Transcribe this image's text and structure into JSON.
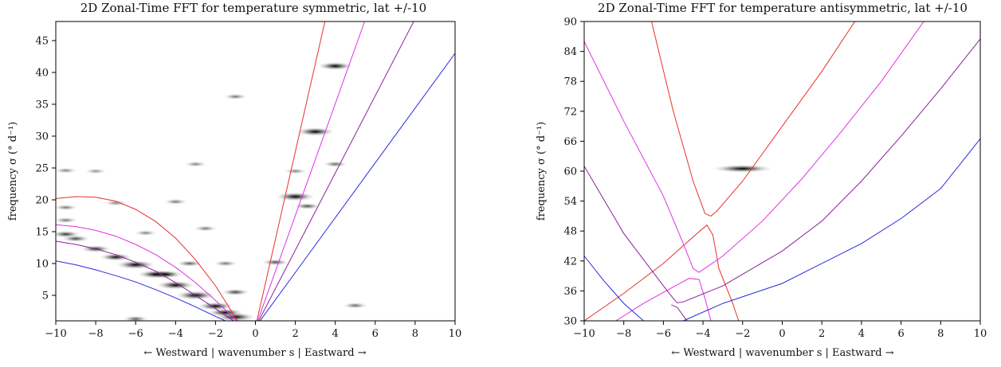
{
  "chart_data": [
    {
      "type": "heatmap",
      "title": "2D Zonal-Time FFT for temperature symmetric, lat +/-10",
      "xlabel": "← Westward | wavenumber s | Eastward →",
      "ylabel": "frequency σ (° d⁻¹)",
      "xlim": [
        -10,
        10
      ],
      "ylim": [
        1,
        48
      ],
      "xticks": [
        -10,
        -8,
        -6,
        -4,
        -2,
        0,
        2,
        4,
        6,
        8,
        10
      ],
      "xtick_labels": [
        "−10",
        "−8",
        "−6",
        "−4",
        "−2",
        "0",
        "2",
        "4",
        "6",
        "8",
        "10"
      ],
      "yticks": [
        5,
        10,
        15,
        20,
        25,
        30,
        35,
        40,
        45
      ],
      "grid": false,
      "colormap": "grayscale (white = low power, black = high power)",
      "spectral_peaks": [
        {
          "s": 4,
          "sigma": 41,
          "intensity": 0.75
        },
        {
          "s": 3,
          "sigma": 30.7,
          "intensity": 0.9
        },
        {
          "s": 2,
          "sigma": 20.5,
          "intensity": 0.95
        },
        {
          "s": 1,
          "sigma": 10.2,
          "intensity": 0.35
        },
        {
          "s": 4,
          "sigma": 25.6,
          "intensity": 0.25
        },
        {
          "s": 2,
          "sigma": 24.5,
          "intensity": 0.15
        },
        {
          "s": 2.6,
          "sigma": 19,
          "intensity": 0.35
        },
        {
          "s": 5,
          "sigma": 3.4,
          "intensity": 0.25
        },
        {
          "s": -1,
          "sigma": 36.2,
          "intensity": 0.2
        },
        {
          "s": -1,
          "sigma": 1.6,
          "intensity": 0.95
        },
        {
          "s": -1.5,
          "sigma": 2.3,
          "intensity": 0.75
        },
        {
          "s": -2,
          "sigma": 3.3,
          "intensity": 0.8
        },
        {
          "s": -3,
          "sigma": 5.0,
          "intensity": 1.0
        },
        {
          "s": -3.3,
          "sigma": 10.0,
          "intensity": 0.3
        },
        {
          "s": -4,
          "sigma": 6.6,
          "intensity": 0.9
        },
        {
          "s": -4.5,
          "sigma": 8.3,
          "intensity": 0.7
        },
        {
          "s": -5,
          "sigma": 8.3,
          "intensity": 0.8
        },
        {
          "s": -6,
          "sigma": 9.8,
          "intensity": 0.95
        },
        {
          "s": -7,
          "sigma": 11.0,
          "intensity": 0.6
        },
        {
          "s": -8,
          "sigma": 12.3,
          "intensity": 0.5
        },
        {
          "s": -9,
          "sigma": 13.9,
          "intensity": 0.4
        },
        {
          "s": -9.5,
          "sigma": 14.6,
          "intensity": 0.45
        },
        {
          "s": -9.5,
          "sigma": 16.8,
          "intensity": 0.2
        },
        {
          "s": -9.5,
          "sigma": 18.8,
          "intensity": 0.2
        },
        {
          "s": -9.5,
          "sigma": 24.6,
          "intensity": 0.15
        },
        {
          "s": -7,
          "sigma": 19.5,
          "intensity": 0.15
        },
        {
          "s": -4,
          "sigma": 19.7,
          "intensity": 0.2
        },
        {
          "s": -2.5,
          "sigma": 15.5,
          "intensity": 0.2
        },
        {
          "s": -5.5,
          "sigma": 14.8,
          "intensity": 0.15
        },
        {
          "s": -1.5,
          "sigma": 10.0,
          "intensity": 0.2
        },
        {
          "s": -1,
          "sigma": 5.5,
          "intensity": 0.4
        },
        {
          "s": -6,
          "sigma": 1.3,
          "intensity": 0.3
        },
        {
          "s": -3,
          "sigma": 25.6,
          "intensity": 0.15
        },
        {
          "s": -8,
          "sigma": 24.5,
          "intensity": 0.1
        }
      ],
      "series": [
        {
          "kind": "eastward",
          "color": "#e8302a",
          "points": [
            [
              0,
              0
            ],
            [
              3.48,
              48
            ]
          ]
        },
        {
          "kind": "eastward",
          "color": "#e030e8",
          "points": [
            [
              0,
              0
            ],
            [
              5.47,
              48
            ]
          ]
        },
        {
          "kind": "eastward",
          "color": "#8c1f9c",
          "points": [
            [
              0,
              0
            ],
            [
              7.93,
              48
            ]
          ]
        },
        {
          "kind": "eastward",
          "color": "#2a2ae0",
          "points": [
            [
              0,
              0
            ],
            [
              10,
              43
            ]
          ]
        },
        {
          "kind": "westward",
          "color": "#e8302a",
          "points": [
            [
              -10,
              20.2
            ],
            [
              -9,
              20.5
            ],
            [
              -8,
              20.4
            ],
            [
              -7,
              19.8
            ],
            [
              -6,
              18.5
            ],
            [
              -5,
              16.6
            ],
            [
              -4,
              14.0
            ],
            [
              -3,
              10.6
            ],
            [
              -2,
              6.5
            ],
            [
              -1,
              1.5
            ],
            [
              -0.75,
              0.2
            ]
          ]
        },
        {
          "kind": "westward",
          "color": "#e030e8",
          "points": [
            [
              -10,
              16.1
            ],
            [
              -9,
              15.8
            ],
            [
              -8,
              15.2
            ],
            [
              -7,
              14.3
            ],
            [
              -6,
              13.0
            ],
            [
              -5,
              11.4
            ],
            [
              -4,
              9.4
            ],
            [
              -3,
              7.0
            ],
            [
              -2,
              4.2
            ],
            [
              -1,
              1.2
            ],
            [
              -0.7,
              0.2
            ]
          ]
        },
        {
          "kind": "westward",
          "color": "#8c1f9c",
          "points": [
            [
              -10,
              13.5
            ],
            [
              -9,
              13.0
            ],
            [
              -8,
              12.3
            ],
            [
              -7,
              11.4
            ],
            [
              -6,
              10.2
            ],
            [
              -5,
              8.8
            ],
            [
              -4,
              7.0
            ],
            [
              -3,
              5.0
            ],
            [
              -2,
              2.9
            ],
            [
              -1,
              0.8
            ],
            [
              -0.7,
              0.2
            ]
          ]
        },
        {
          "kind": "westward",
          "color": "#2a2ae0",
          "points": [
            [
              -10,
              10.4
            ],
            [
              -9,
              9.8
            ],
            [
              -8,
              9.0
            ],
            [
              -7,
              8.1
            ],
            [
              -6,
              7.1
            ],
            [
              -5,
              5.9
            ],
            [
              -4,
              4.6
            ],
            [
              -3,
              3.2
            ],
            [
              -2,
              1.7
            ],
            [
              -1,
              0.3
            ],
            [
              -0.8,
              0.1
            ]
          ]
        }
      ]
    },
    {
      "type": "heatmap",
      "title": "2D Zonal-Time FFT for temperature antisymmetric, lat +/-10",
      "xlabel": "← Westward | wavenumber s | Eastward →",
      "ylabel": "frequency σ (° d⁻¹)",
      "xlim": [
        -10,
        10
      ],
      "ylim": [
        30,
        90
      ],
      "xticks": [
        -10,
        -8,
        -6,
        -4,
        -2,
        0,
        2,
        4,
        6,
        8,
        10
      ],
      "xtick_labels": [
        "−10",
        "−8",
        "−6",
        "−4",
        "−2",
        "0",
        "2",
        "4",
        "6",
        "8",
        "10"
      ],
      "yticks": [
        30,
        36,
        42,
        48,
        54,
        60,
        66,
        72,
        78,
        84,
        90
      ],
      "grid": false,
      "colormap": "grayscale (white = low power, black = high power)",
      "spectral_peaks": [
        {
          "s": -2,
          "sigma": 60.5,
          "intensity": 1.0
        }
      ],
      "series": [
        {
          "kind": "eastward",
          "color": "#e8302a",
          "points": [
            [
              -10,
              30
            ],
            [
              -8,
              35.5
            ],
            [
              -6,
              41.5
            ],
            [
              -4.3,
              47.5
            ],
            [
              -3.8,
              49.2
            ],
            [
              -3.5,
              47.2
            ],
            [
              -3.2,
              40.5
            ],
            [
              -2.5,
              33.5
            ],
            [
              -2.2,
              30
            ]
          ]
        },
        {
          "kind": "eastward",
          "color": "#e8302a",
          "points": [
            [
              -6.6,
              90
            ],
            [
              -5.5,
              72
            ],
            [
              -4.5,
              58
            ],
            [
              -3.9,
              51.5
            ],
            [
              -3.6,
              51
            ],
            [
              -3.3,
              52
            ],
            [
              -2,
              58
            ],
            [
              0,
              69
            ],
            [
              2,
              80
            ],
            [
              4,
              92
            ]
          ]
        },
        {
          "kind": "eastward",
          "color": "#e030e8",
          "points": [
            [
              -8.4,
              30
            ],
            [
              -7,
              33.5
            ],
            [
              -5.5,
              36.8
            ],
            [
              -4.7,
              38.5
            ],
            [
              -4.2,
              38.3
            ],
            [
              -3.9,
              34.5
            ],
            [
              -3.6,
              30
            ]
          ]
        },
        {
          "kind": "eastward",
          "color": "#e030e8",
          "points": [
            [
              -10,
              86
            ],
            [
              -8,
              70
            ],
            [
              -6,
              55
            ],
            [
              -5,
              45.5
            ],
            [
              -4.5,
              40.5
            ],
            [
              -4.2,
              39.7
            ],
            [
              -3,
              43
            ],
            [
              -1,
              50
            ],
            [
              1,
              58.5
            ],
            [
              3,
              68
            ],
            [
              5,
              78
            ],
            [
              7.5,
              92
            ]
          ]
        },
        {
          "kind": "eastward",
          "color": "#8c1f9c",
          "points": [
            [
              -10,
              61
            ],
            [
              -8,
              47.5
            ],
            [
              -6,
              37
            ],
            [
              -5.5,
              34.5
            ],
            [
              -5.3,
              33.6
            ],
            [
              -5.0,
              33.8
            ],
            [
              -3,
              37
            ],
            [
              0,
              44
            ],
            [
              2,
              50
            ],
            [
              4,
              58
            ],
            [
              6,
              67
            ],
            [
              8,
              76.5
            ],
            [
              10,
              86.5
            ]
          ]
        },
        {
          "kind": "eastward",
          "color": "#8c1f9c",
          "points": [
            [
              -5.6,
              33.2
            ],
            [
              -5.3,
              32.7
            ],
            [
              -5.0,
              31
            ],
            [
              -4.6,
              29
            ]
          ]
        },
        {
          "kind": "eastward",
          "color": "#2a2ae0",
          "points": [
            [
              -10,
              43
            ],
            [
              -9,
              38
            ],
            [
              -8,
              33.5
            ],
            [
              -7.0,
              30
            ]
          ]
        },
        {
          "kind": "eastward",
          "color": "#2a2ae0",
          "points": [
            [
              -5.0,
              30
            ],
            [
              -3,
              33.5
            ],
            [
              0,
              37.5
            ],
            [
              2,
              41.5
            ],
            [
              4,
              45.5
            ],
            [
              6,
              50.5
            ],
            [
              8,
              56.5
            ],
            [
              10,
              66.5
            ]
          ]
        }
      ]
    }
  ]
}
